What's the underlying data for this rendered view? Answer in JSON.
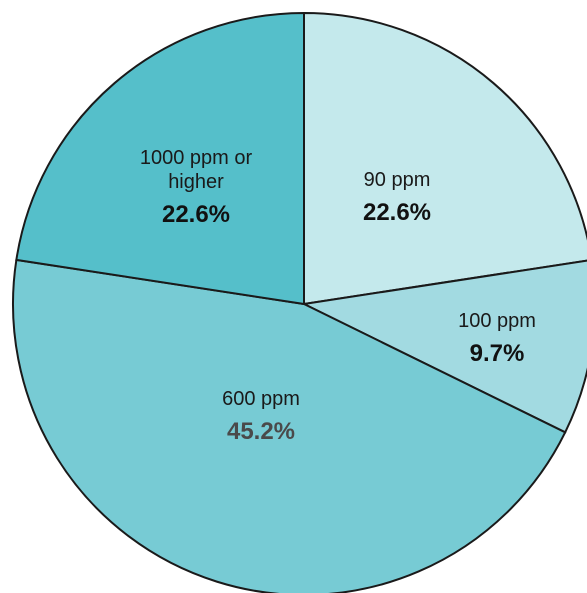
{
  "chart_data": {
    "type": "pie",
    "title": "",
    "slices": [
      {
        "label_lines": [
          "90 ppm"
        ],
        "value": 22.6,
        "value_label": "22.6%",
        "color": "#c4e9ec",
        "label_color": "#111111"
      },
      {
        "label_lines": [
          "100 ppm"
        ],
        "value": 9.7,
        "value_label": "9.7%",
        "color": "#a2dae1",
        "label_color": "#111111"
      },
      {
        "label_lines": [
          "600 ppm"
        ],
        "value": 45.2,
        "value_label": "45.2%",
        "color": "#77cbd4",
        "label_color": "#4a4a4a"
      },
      {
        "label_lines": [
          "1000 ppm or",
          "higher"
        ],
        "value": 22.6,
        "value_label": "22.6%",
        "color": "#55bfca",
        "label_color": "#111111"
      }
    ],
    "start": "top",
    "direction": "clockwise"
  }
}
